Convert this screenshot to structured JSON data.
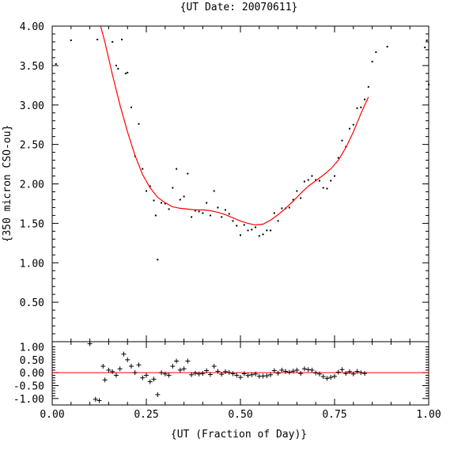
{
  "chart_data": [
    {
      "panel": "main",
      "type": "scatter",
      "title": "{UT Date: 20070611}",
      "xlabel": "{UT (Fraction of Day)}",
      "ylabel": "{350 micron CSO-ou}",
      "xlim": [
        0.0,
        1.0
      ],
      "ylim": [
        0.0,
        4.0
      ],
      "x_ticks": [
        "0.00",
        "0.25",
        "0.50",
        "0.75",
        "1.00"
      ],
      "y_ticks": [
        "0.50",
        "1.00",
        "1.50",
        "2.00",
        "2.50",
        "3.00",
        "3.50",
        "4.00"
      ],
      "grid": false,
      "fit_color": "#ff0000",
      "point_color": "#000000",
      "series": [
        {
          "points": [
            [
              0.01,
              3.52
            ],
            [
              0.05,
              3.82
            ],
            [
              0.12,
              3.83
            ],
            [
              0.16,
              3.8
            ],
            [
              0.17,
              3.5
            ],
            [
              0.175,
              3.46
            ],
            [
              0.185,
              3.83
            ],
            [
              0.195,
              3.4
            ],
            [
              0.2,
              3.41
            ],
            [
              0.21,
              2.97
            ],
            [
              0.22,
              2.35
            ],
            [
              0.23,
              2.76
            ],
            [
              0.24,
              2.19
            ],
            [
              0.25,
              1.91
            ],
            [
              0.26,
              1.97
            ],
            [
              0.27,
              1.79
            ],
            [
              0.275,
              1.6
            ],
            [
              0.28,
              1.04
            ],
            [
              0.29,
              1.76
            ],
            [
              0.3,
              1.75
            ],
            [
              0.31,
              1.68
            ],
            [
              0.32,
              1.95
            ],
            [
              0.33,
              2.19
            ],
            [
              0.34,
              1.8
            ],
            [
              0.35,
              1.84
            ],
            [
              0.36,
              2.13
            ],
            [
              0.37,
              1.58
            ],
            [
              0.38,
              1.66
            ],
            [
              0.39,
              1.65
            ],
            [
              0.4,
              1.63
            ],
            [
              0.41,
              1.76
            ],
            [
              0.42,
              1.6
            ],
            [
              0.43,
              1.91
            ],
            [
              0.44,
              1.7
            ],
            [
              0.45,
              1.58
            ],
            [
              0.46,
              1.67
            ],
            [
              0.47,
              1.62
            ],
            [
              0.48,
              1.53
            ],
            [
              0.49,
              1.47
            ],
            [
              0.5,
              1.35
            ],
            [
              0.51,
              1.48
            ],
            [
              0.52,
              1.41
            ],
            [
              0.53,
              1.42
            ],
            [
              0.54,
              1.45
            ],
            [
              0.55,
              1.34
            ],
            [
              0.56,
              1.36
            ],
            [
              0.57,
              1.41
            ],
            [
              0.58,
              1.41
            ],
            [
              0.59,
              1.63
            ],
            [
              0.6,
              1.53
            ],
            [
              0.61,
              1.69
            ],
            [
              0.62,
              1.69
            ],
            [
              0.63,
              1.7
            ],
            [
              0.64,
              1.8
            ],
            [
              0.65,
              1.91
            ],
            [
              0.66,
              1.82
            ],
            [
              0.67,
              2.03
            ],
            [
              0.68,
              2.05
            ],
            [
              0.69,
              2.1
            ],
            [
              0.7,
              2.05
            ],
            [
              0.71,
              2.04
            ],
            [
              0.72,
              1.95
            ],
            [
              0.73,
              1.94
            ],
            [
              0.74,
              2.04
            ],
            [
              0.75,
              2.1
            ],
            [
              0.76,
              2.33
            ],
            [
              0.77,
              2.55
            ],
            [
              0.78,
              2.47
            ],
            [
              0.79,
              2.7
            ],
            [
              0.8,
              2.75
            ],
            [
              0.81,
              2.96
            ],
            [
              0.82,
              2.97
            ],
            [
              0.83,
              3.07
            ],
            [
              0.84,
              3.23
            ],
            [
              0.85,
              3.55
            ],
            [
              0.86,
              3.67
            ],
            [
              0.89,
              3.74
            ],
            [
              0.99,
              3.73
            ],
            [
              0.995,
              3.82
            ],
            [
              1.0,
              3.26
            ]
          ]
        },
        {
          "name": "",
          "type": "line",
          "points": [
            [
              0.12,
              4.15
            ],
            [
              0.14,
              3.8
            ],
            [
              0.16,
              3.38
            ],
            [
              0.18,
              3.0
            ],
            [
              0.2,
              2.66
            ],
            [
              0.22,
              2.36
            ],
            [
              0.24,
              2.12
            ],
            [
              0.26,
              1.95
            ],
            [
              0.28,
              1.83
            ],
            [
              0.3,
              1.76
            ],
            [
              0.32,
              1.71
            ],
            [
              0.34,
              1.69
            ],
            [
              0.36,
              1.68
            ],
            [
              0.38,
              1.67
            ],
            [
              0.4,
              1.67
            ],
            [
              0.42,
              1.66
            ],
            [
              0.44,
              1.64
            ],
            [
              0.46,
              1.61
            ],
            [
              0.48,
              1.57
            ],
            [
              0.5,
              1.53
            ],
            [
              0.52,
              1.5
            ],
            [
              0.54,
              1.48
            ],
            [
              0.56,
              1.49
            ],
            [
              0.58,
              1.54
            ],
            [
              0.6,
              1.61
            ],
            [
              0.62,
              1.69
            ],
            [
              0.64,
              1.78
            ],
            [
              0.66,
              1.88
            ],
            [
              0.68,
              1.97
            ],
            [
              0.7,
              2.04
            ],
            [
              0.72,
              2.11
            ],
            [
              0.74,
              2.19
            ],
            [
              0.76,
              2.3
            ],
            [
              0.78,
              2.46
            ],
            [
              0.8,
              2.66
            ],
            [
              0.82,
              2.89
            ],
            [
              0.83,
              3.0
            ],
            [
              0.84,
              3.1
            ]
          ]
        }
      ]
    },
    {
      "panel": "residuals",
      "type": "scatter",
      "xlim": [
        0.0,
        1.0
      ],
      "ylim": [
        -1.25,
        1.2
      ],
      "x_ticks": [
        "0.00",
        "0.25",
        "0.50",
        "0.75",
        "1.00"
      ],
      "y_ticks": [
        "1.00",
        "0.50",
        "0.00",
        "-0.50",
        "-1.00"
      ],
      "zero_line_color": "#ff0000",
      "series": [
        {
          "points": [
            [
              0.1,
              1.12
            ],
            [
              0.115,
              -1.03
            ],
            [
              0.125,
              -1.08
            ],
            [
              0.135,
              0.25
            ],
            [
              0.14,
              -0.28
            ],
            [
              0.15,
              0.1
            ],
            [
              0.16,
              0.04
            ],
            [
              0.17,
              -0.1
            ],
            [
              0.18,
              0.15
            ],
            [
              0.19,
              0.72
            ],
            [
              0.2,
              0.5
            ],
            [
              0.21,
              0.25
            ],
            [
              0.22,
              0.0
            ],
            [
              0.23,
              0.3
            ],
            [
              0.24,
              -0.2
            ],
            [
              0.25,
              -0.1
            ],
            [
              0.26,
              -0.35
            ],
            [
              0.27,
              -0.25
            ],
            [
              0.28,
              -0.85
            ],
            [
              0.29,
              0.0
            ],
            [
              0.3,
              -0.05
            ],
            [
              0.31,
              -0.1
            ],
            [
              0.32,
              0.25
            ],
            [
              0.33,
              0.45
            ],
            [
              0.34,
              0.1
            ],
            [
              0.35,
              0.15
            ],
            [
              0.36,
              0.45
            ],
            [
              0.37,
              -0.08
            ],
            [
              0.38,
              -0.02
            ],
            [
              0.39,
              -0.05
            ],
            [
              0.4,
              -0.03
            ],
            [
              0.41,
              0.08
            ],
            [
              0.42,
              -0.07
            ],
            [
              0.43,
              0.25
            ],
            [
              0.44,
              0.05
            ],
            [
              0.45,
              -0.06
            ],
            [
              0.46,
              0.04
            ],
            [
              0.47,
              0.01
            ],
            [
              0.48,
              -0.04
            ],
            [
              0.49,
              -0.1
            ],
            [
              0.5,
              -0.18
            ],
            [
              0.51,
              -0.04
            ],
            [
              0.52,
              -0.11
            ],
            [
              0.53,
              -0.08
            ],
            [
              0.54,
              -0.05
            ],
            [
              0.55,
              -0.14
            ],
            [
              0.56,
              -0.13
            ],
            [
              0.57,
              -0.12
            ],
            [
              0.58,
              -0.08
            ],
            [
              0.59,
              0.08
            ],
            [
              0.6,
              -0.02
            ],
            [
              0.61,
              0.1
            ],
            [
              0.62,
              0.05
            ],
            [
              0.63,
              0.02
            ],
            [
              0.64,
              0.06
            ],
            [
              0.65,
              0.1
            ],
            [
              0.66,
              -0.03
            ],
            [
              0.67,
              0.15
            ],
            [
              0.68,
              0.12
            ],
            [
              0.69,
              0.1
            ],
            [
              0.7,
              -0.01
            ],
            [
              0.71,
              -0.05
            ],
            [
              0.72,
              -0.15
            ],
            [
              0.73,
              -0.22
            ],
            [
              0.74,
              -0.18
            ],
            [
              0.75,
              -0.14
            ],
            [
              0.76,
              0.02
            ],
            [
              0.77,
              0.12
            ],
            [
              0.78,
              -0.03
            ],
            [
              0.79,
              0.04
            ],
            [
              0.8,
              -0.05
            ],
            [
              0.81,
              0.05
            ],
            [
              0.82,
              0.0
            ],
            [
              0.83,
              -0.03
            ]
          ]
        }
      ]
    }
  ]
}
